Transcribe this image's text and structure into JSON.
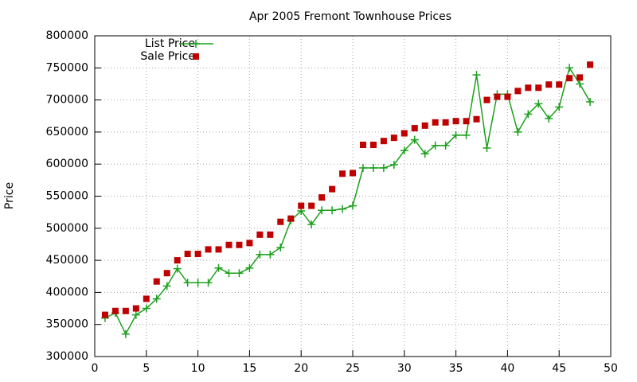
{
  "chart_data": {
    "type": "line",
    "title": "Apr 2005 Fremont Townhouse Prices",
    "y_label": "Price",
    "x": [
      1,
      2,
      3,
      4,
      5,
      6,
      7,
      8,
      9,
      10,
      11,
      12,
      13,
      14,
      15,
      16,
      17,
      18,
      19,
      20,
      21,
      22,
      23,
      24,
      25,
      26,
      27,
      28,
      29,
      30,
      31,
      32,
      33,
      34,
      35,
      36,
      37,
      38,
      39,
      40,
      41,
      42,
      43,
      44,
      45,
      46,
      47,
      48
    ],
    "series": [
      {
        "name": "List Price",
        "color": "#1ca01c",
        "mode": "linespoints",
        "values": [
          360000,
          368000,
          335000,
          365000,
          375000,
          390000,
          410000,
          437000,
          415000,
          415000,
          415000,
          438000,
          430000,
          430000,
          438000,
          459000,
          459000,
          470000,
          512000,
          527000,
          506000,
          528000,
          528000,
          530000,
          535000,
          594000,
          594000,
          594000,
          599000,
          621000,
          638000,
          616000,
          629000,
          629000,
          645000,
          645000,
          739000,
          625000,
          709000,
          709000,
          650000,
          678000,
          694000,
          671000,
          689000,
          750000,
          725000,
          697000
        ]
      },
      {
        "name": "Sale Price",
        "color": "#c00000",
        "mode": "points",
        "values": [
          365000,
          371000,
          371000,
          375000,
          390000,
          417000,
          430000,
          450000,
          460000,
          460000,
          467000,
          467000,
          474000,
          474000,
          477000,
          490000,
          490000,
          510000,
          515000,
          535000,
          535000,
          548000,
          561000,
          585000,
          586000,
          630000,
          630000,
          636000,
          641000,
          648000,
          656000,
          660000,
          665000,
          665000,
          667000,
          667000,
          670000,
          700000,
          705000,
          705000,
          714000,
          719000,
          719000,
          724000,
          724000,
          734000,
          735000,
          755000
        ]
      }
    ],
    "xlim": [
      0,
      50
    ],
    "xticks": [
      0,
      5,
      10,
      15,
      20,
      25,
      30,
      35,
      40,
      45,
      50
    ],
    "ylim": [
      300000,
      800000
    ],
    "yticks": [
      300000,
      350000,
      400000,
      450000,
      500000,
      550000,
      600000,
      650000,
      700000,
      750000,
      800000
    ],
    "grid": true,
    "legend": "top-left"
  }
}
